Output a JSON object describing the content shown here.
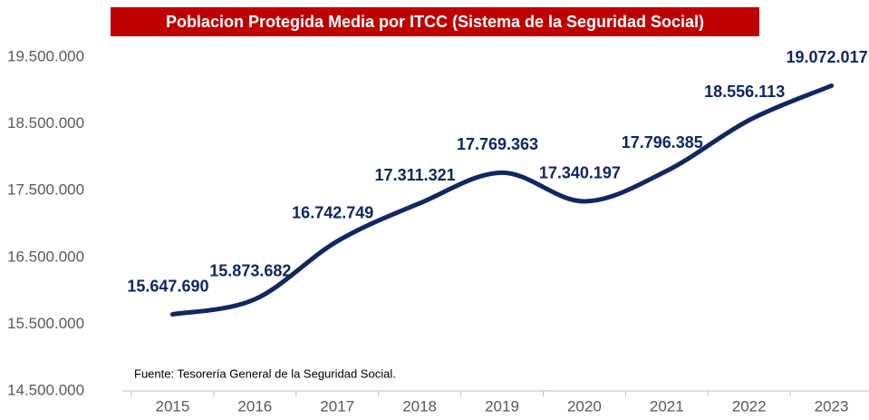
{
  "chart_data": {
    "type": "line",
    "title": "Poblacion Protegida Media por ITCC (Sistema de la Seguridad Social)",
    "source": "Fuente: Tesorería General de la Seguridad Social.",
    "categories": [
      "2015",
      "2016",
      "2017",
      "2018",
      "2019",
      "2020",
      "2021",
      "2022",
      "2023"
    ],
    "series": [
      {
        "name": "Poblacion Protegida Media",
        "color": "#0f2763",
        "values": [
          15647690,
          15873682,
          16742749,
          17311321,
          17769363,
          17340197,
          17796385,
          18556113,
          19072017
        ],
        "value_labels": [
          "15.647.690",
          "15.873.682",
          "16.742.749",
          "17.311.321",
          "17.769.363",
          "17.340.197",
          "17.796.385",
          "18.556.113",
          "19.072.017"
        ]
      }
    ],
    "ylim": [
      14500000,
      19500000
    ],
    "yticks": [
      {
        "value": 14500000,
        "label": "14.500.000"
      },
      {
        "value": 15500000,
        "label": "15.500.000"
      },
      {
        "value": 16500000,
        "label": "16.500.000"
      },
      {
        "value": 17500000,
        "label": "17.500.000"
      },
      {
        "value": 18500000,
        "label": "18.500.000"
      },
      {
        "value": 19500000,
        "label": "19.500.000"
      }
    ],
    "grid": false
  }
}
